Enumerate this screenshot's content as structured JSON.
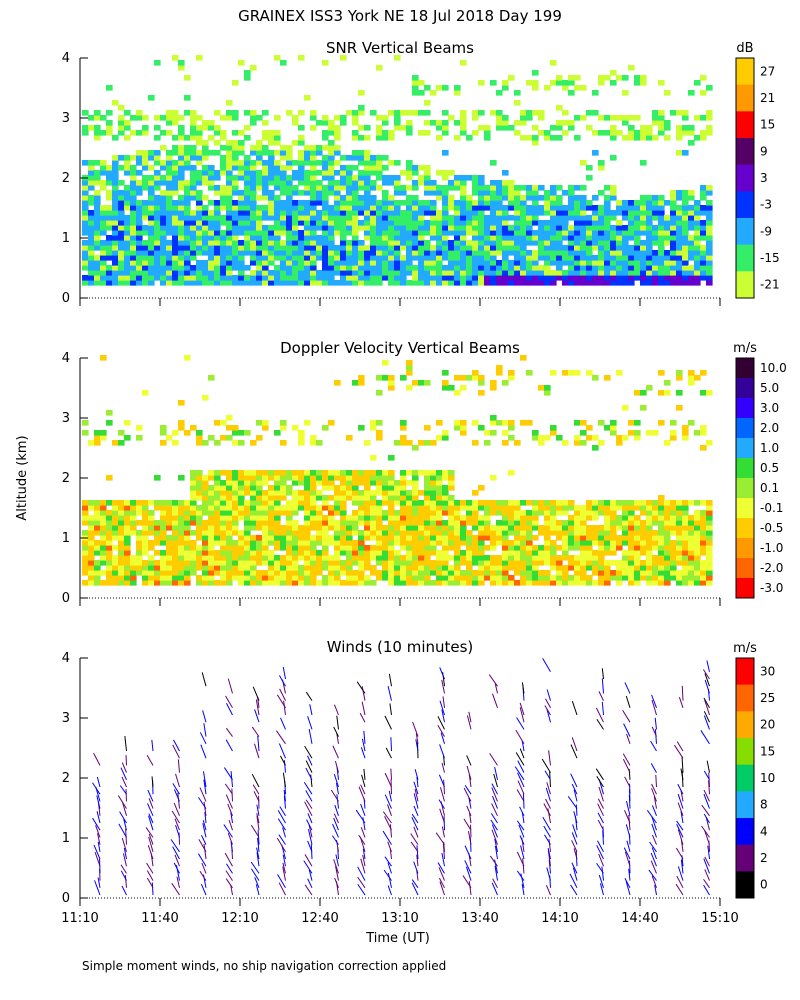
{
  "title": "GRAINEX ISS3 York NE  18 Jul 2018 Day 199",
  "ylabel": "Altitude (km)",
  "xlabel": "Time (UT)",
  "footnote": "Simple moment winds, no ship navigation correction applied",
  "chart_data": [
    {
      "type": "heatmap",
      "title": "SNR Vertical Beams",
      "xlim": [
        "11:10",
        "15:10"
      ],
      "ylim": [
        0,
        4
      ],
      "yticks": [
        "0",
        "1",
        "2",
        "3",
        "4"
      ],
      "colorbar": {
        "unit": "dB",
        "labels": [
          "27",
          "21",
          "15",
          "9",
          "3",
          "-3",
          "-9",
          "-15",
          "-21"
        ],
        "colors": [
          "#ffcc00",
          "#ff9900",
          "#ff0000",
          "#550066",
          "#6600cc",
          "#0033ff",
          "#22aaff",
          "#33ee66",
          "#ccff33"
        ]
      }
    },
    {
      "type": "heatmap",
      "title": "Doppler Velocity Vertical Beams",
      "xlim": [
        "11:10",
        "15:10"
      ],
      "ylim": [
        0,
        4
      ],
      "yticks": [
        "0",
        "1",
        "2",
        "3",
        "4"
      ],
      "colorbar": {
        "unit": "m/s",
        "labels": [
          "10.0",
          "5.0",
          "3.0",
          "2.0",
          "1.0",
          "0.5",
          "0.1",
          "-0.1",
          "-0.5",
          "-1.0",
          "-2.0",
          "-3.0"
        ],
        "colors": [
          "#330033",
          "#330099",
          "#3300ff",
          "#0066ff",
          "#22aaff",
          "#33dd33",
          "#99ee33",
          "#eeff33",
          "#ffcc00",
          "#ff9900",
          "#ff6600",
          "#ff0000"
        ]
      }
    },
    {
      "type": "barbs",
      "title": "Winds (10 minutes)",
      "xlim": [
        "11:10",
        "15:10"
      ],
      "ylim": [
        0,
        4
      ],
      "yticks": [
        "0",
        "1",
        "2",
        "3",
        "4"
      ],
      "xticks": [
        "11:10",
        "11:40",
        "12:10",
        "12:40",
        "13:10",
        "13:40",
        "14:10",
        "14:40",
        "15:10"
      ],
      "colorbar": {
        "unit": "m/s",
        "labels": [
          "30",
          "25",
          "20",
          "15",
          "10",
          "8",
          "4",
          "2",
          "0"
        ],
        "colors": [
          "#ff0000",
          "#ff6600",
          "#ffaa00",
          "#88dd00",
          "#00cc66",
          "#22aaff",
          "#0000ff",
          "#660077",
          "#000000"
        ]
      }
    }
  ]
}
